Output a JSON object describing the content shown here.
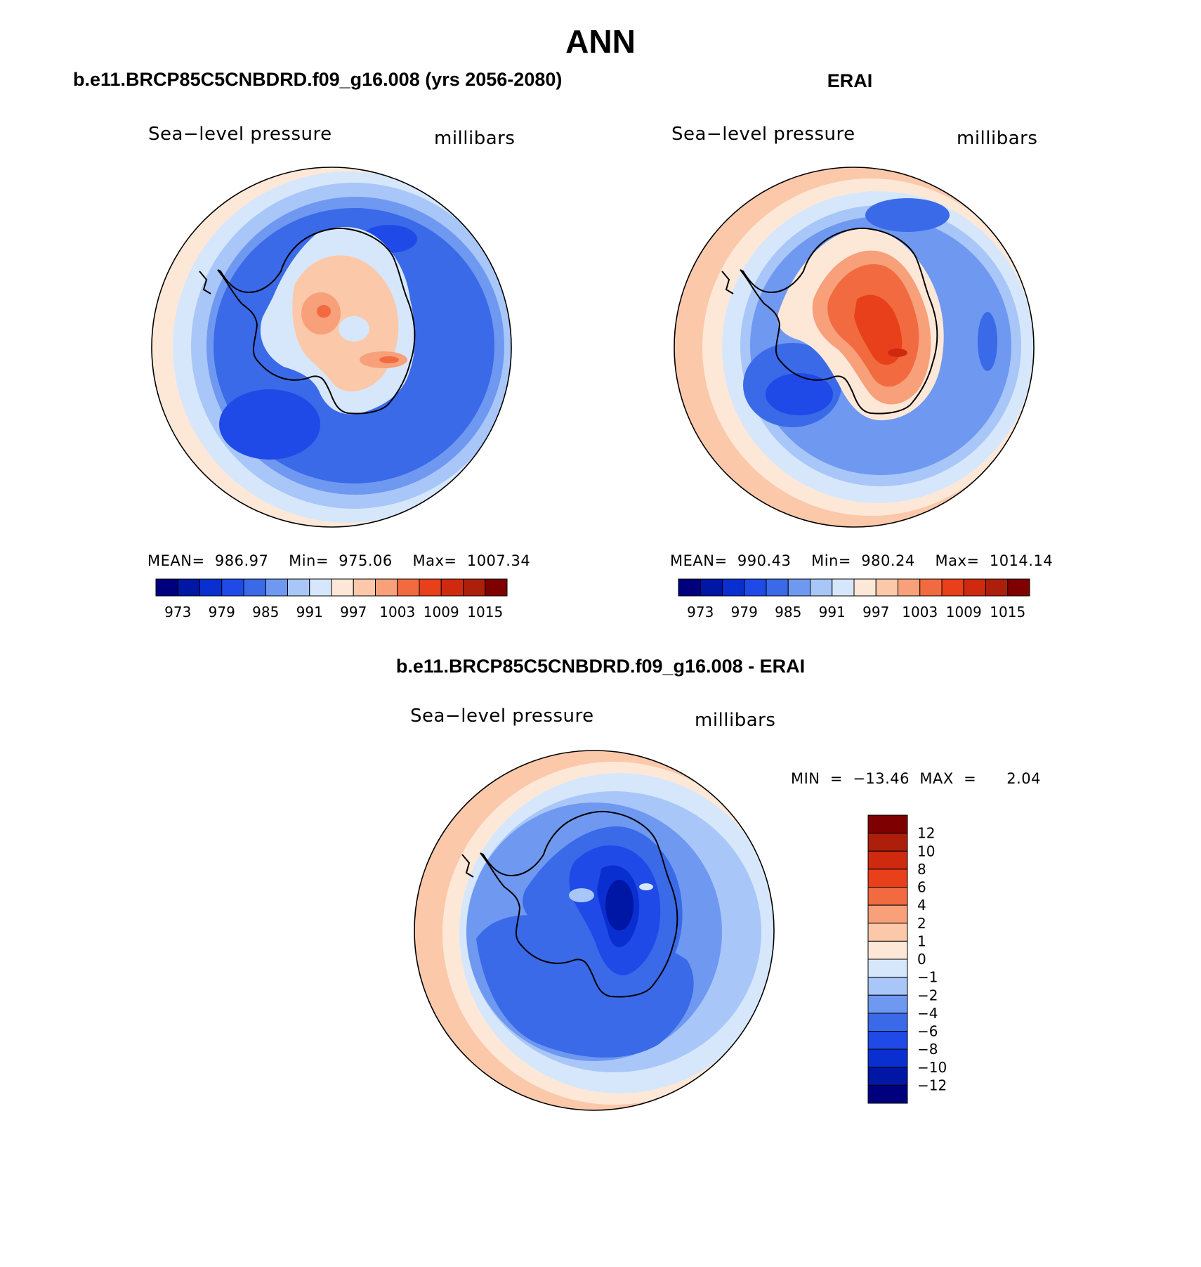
{
  "page": {
    "title": "ANN"
  },
  "panels": {
    "model": {
      "heading": "b.e11.BRCP85C5CNBDRD.f09_g16.008 (yrs 2056-2080)",
      "variable": "Sea−level pressure",
      "units": "millibars",
      "stats": "MEAN=  986.97    Min=  975.06    Max=  1007.34"
    },
    "obs": {
      "heading": "ERAI",
      "variable": "Sea−level pressure",
      "units": "millibars",
      "stats": "MEAN=  990.43    Min=  980.24    Max=  1014.14"
    },
    "diff": {
      "heading": "b.e11.BRCP85C5CNBDRD.f09_g16.008 - ERAI",
      "variable": "Sea−level pressure",
      "units": "millibars",
      "stats": "MIN  =  −13.46  MAX  =      2.04"
    }
  },
  "colorbars": {
    "absolute": {
      "colors": [
        "#00007f",
        "#0016a4",
        "#0a2fd0",
        "#1f4ae8",
        "#3a6ae8",
        "#6f98f0",
        "#a8c6f8",
        "#d7e7fb",
        "#fde8d8",
        "#fbc8aa",
        "#f7a07a",
        "#f26a3f",
        "#e8401a",
        "#cf2a0f",
        "#ad1f0a",
        "#7f0000"
      ],
      "labels": [
        "973",
        "979",
        "985",
        "991",
        "997",
        "1003",
        "1009",
        "1015"
      ]
    },
    "difference": {
      "colors": [
        "#00007f",
        "#0016a4",
        "#0a2fd0",
        "#1f4ae8",
        "#3a6ae8",
        "#6f98f0",
        "#a8c6f8",
        "#d7e7fb",
        "#fde8d8",
        "#fbc8aa",
        "#f7a07a",
        "#f26a3f",
        "#e8401a",
        "#cf2a0f",
        "#ad1f0a",
        "#7f0000"
      ],
      "labels": [
        "−12",
        "−10",
        "−8",
        "−6",
        "−4",
        "−2",
        "−1",
        "0",
        "1",
        "2",
        "4",
        "6",
        "8",
        "10",
        "12"
      ]
    }
  },
  "map_colors": {
    "edge_warm": "#f6b08e",
    "ring_light": "#d7e7fb",
    "ring_pale": "#a8c6f8",
    "ocean_mid": "#6f98f0",
    "ocean_deep": "#3a6ae8",
    "low_core": "#1f4ae8",
    "high_core": "#e8401a",
    "coast": "#000000"
  }
}
